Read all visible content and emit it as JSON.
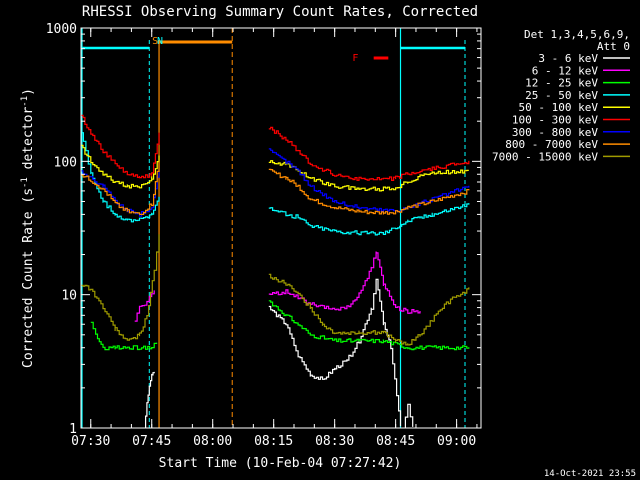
{
  "chart_data": {
    "type": "line",
    "title": "RHESSI Observing Summary Count Rates, Corrected",
    "xlabel": "Start Time (10-Feb-04 07:27:42)",
    "ylabel_main": "Corrected Count Rate (s",
    "ylabel_sup1": "-1",
    "ylabel_mid": " detector",
    "ylabel_sup2": "-1",
    "ylabel_end": ")",
    "ylog": true,
    "ylim": [
      1,
      1000
    ],
    "xlim": [
      7.46,
      9.1
    ],
    "x_ticks": [
      {
        "value": 7.5,
        "label": "07:30"
      },
      {
        "value": 7.75,
        "label": "07:45"
      },
      {
        "value": 8.0,
        "label": "08:00"
      },
      {
        "value": 8.25,
        "label": "08:15"
      },
      {
        "value": 8.5,
        "label": "08:30"
      },
      {
        "value": 8.75,
        "label": "08:45"
      },
      {
        "value": 9.0,
        "label": "09:00"
      }
    ],
    "y_ticks": [
      {
        "value": 1,
        "label": "1"
      },
      {
        "value": 10,
        "label": "10"
      },
      {
        "value": 100,
        "label": "100"
      },
      {
        "value": 1000,
        "label": "1000"
      }
    ],
    "legend_header": [
      "Det 1,3,4,5,6,9,",
      "Att 0"
    ],
    "legend_position": "right",
    "footer_date": "14-Oct-2021 23:55",
    "flags": [
      {
        "label": "S",
        "color": "#ff8c00",
        "x": 7.76
      },
      {
        "label": "N",
        "color": "#00ffff",
        "x": 7.78
      },
      {
        "label": "F",
        "color": "#ff0000",
        "x": 8.63
      }
    ],
    "series": [
      {
        "name": "3 - 6 keV",
        "color": "#ffffff",
        "segments": [
          [
            [
              7.72,
              1
            ],
            [
              7.73,
              1.5
            ],
            [
              7.74,
              2
            ],
            [
              7.75,
              2.5
            ],
            [
              7.76,
              2.6
            ]
          ],
          [
            [
              8.23,
              8
            ],
            [
              8.3,
              6
            ],
            [
              8.35,
              3.5
            ],
            [
              8.4,
              2.5
            ],
            [
              8.45,
              2.3
            ],
            [
              8.5,
              2.8
            ],
            [
              8.55,
              3.2
            ],
            [
              8.6,
              4.5
            ],
            [
              8.65,
              8
            ],
            [
              8.67,
              13
            ],
            [
              8.7,
              6
            ],
            [
              8.73,
              4
            ],
            [
              8.77,
              1
            ]
          ],
          [
            [
              8.78,
              1
            ],
            [
              8.8,
              1.5
            ],
            [
              8.82,
              1
            ]
          ]
        ]
      },
      {
        "name": "6 - 12 keV",
        "color": "#ff00ff",
        "segments": [
          [
            [
              7.68,
              6.5
            ],
            [
              7.7,
              8
            ],
            [
              7.72,
              8.5
            ],
            [
              7.74,
              9.5
            ],
            [
              7.76,
              11
            ]
          ],
          [
            [
              8.23,
              10
            ],
            [
              8.3,
              10.5
            ],
            [
              8.35,
              9.5
            ],
            [
              8.4,
              8.5
            ],
            [
              8.45,
              8
            ],
            [
              8.5,
              7.8
            ],
            [
              8.55,
              8
            ],
            [
              8.6,
              10
            ],
            [
              8.65,
              16
            ],
            [
              8.67,
              21
            ],
            [
              8.7,
              12
            ],
            [
              8.75,
              8
            ],
            [
              8.8,
              7.5
            ],
            [
              8.85,
              7.5
            ]
          ]
        ]
      },
      {
        "name": "12 - 25 keV",
        "color": "#00ff00",
        "segments": [
          [
            [
              7.5,
              6
            ],
            [
              7.52,
              5
            ],
            [
              7.55,
              4
            ],
            [
              7.6,
              4
            ],
            [
              7.65,
              4
            ],
            [
              7.7,
              4
            ],
            [
              7.75,
              4
            ],
            [
              7.77,
              4.5
            ]
          ],
          [
            [
              8.23,
              9
            ],
            [
              8.3,
              7
            ],
            [
              8.35,
              6
            ],
            [
              8.4,
              5
            ],
            [
              8.5,
              4.5
            ],
            [
              8.6,
              4.5
            ],
            [
              8.7,
              4.5
            ],
            [
              8.8,
              4
            ],
            [
              8.9,
              4
            ],
            [
              9.05,
              4
            ]
          ]
        ]
      },
      {
        "name": "25 - 50 keV",
        "color": "#00ffff",
        "segments": [
          [
            [
              7.46,
              160
            ],
            [
              7.48,
              120
            ],
            [
              7.5,
              80
            ],
            [
              7.55,
              50
            ],
            [
              7.6,
              40
            ],
            [
              7.65,
              36
            ],
            [
              7.7,
              37
            ],
            [
              7.75,
              40
            ],
            [
              7.78,
              55
            ]
          ],
          [
            [
              8.23,
              45
            ],
            [
              8.3,
              40
            ],
            [
              8.35,
              38
            ],
            [
              8.4,
              33
            ],
            [
              8.5,
              30
            ],
            [
              8.6,
              29
            ],
            [
              8.7,
              29
            ],
            [
              8.75,
              32
            ],
            [
              8.8,
              36
            ],
            [
              8.85,
              38
            ],
            [
              8.9,
              40
            ],
            [
              9.05,
              48
            ]
          ]
        ]
      },
      {
        "name": "50 - 100 keV",
        "color": "#ffff00",
        "segments": [
          [
            [
              7.46,
              130
            ],
            [
              7.5,
              100
            ],
            [
              7.55,
              80
            ],
            [
              7.6,
              70
            ],
            [
              7.65,
              65
            ],
            [
              7.7,
              65
            ],
            [
              7.75,
              75
            ],
            [
              7.78,
              110
            ]
          ],
          [
            [
              8.23,
              100
            ],
            [
              8.3,
              95
            ],
            [
              8.35,
              85
            ],
            [
              8.4,
              75
            ],
            [
              8.5,
              65
            ],
            [
              8.6,
              62
            ],
            [
              8.7,
              62
            ],
            [
              8.75,
              63
            ],
            [
              8.8,
              70
            ],
            [
              8.85,
              78
            ],
            [
              8.9,
              82
            ],
            [
              9.05,
              85
            ]
          ]
        ]
      },
      {
        "name": "100 - 300 keV",
        "color": "#ff0000",
        "segments": [
          [
            [
              7.46,
              220
            ],
            [
              7.5,
              160
            ],
            [
              7.55,
              120
            ],
            [
              7.6,
              95
            ],
            [
              7.65,
              80
            ],
            [
              7.7,
              75
            ],
            [
              7.75,
              80
            ],
            [
              7.78,
              160
            ]
          ],
          [
            [
              8.23,
              180
            ],
            [
              8.3,
              145
            ],
            [
              8.35,
              120
            ],
            [
              8.4,
              95
            ],
            [
              8.5,
              80
            ],
            [
              8.6,
              74
            ],
            [
              8.7,
              73
            ],
            [
              8.75,
              75
            ],
            [
              8.8,
              80
            ],
            [
              8.9,
              88
            ],
            [
              9.05,
              100
            ]
          ]
        ]
      },
      {
        "name": "300 - 800 keV",
        "color": "#0000ff",
        "segments": [
          [
            [
              7.46,
              85
            ],
            [
              7.5,
              75
            ],
            [
              7.55,
              65
            ],
            [
              7.6,
              50
            ],
            [
              7.65,
              43
            ],
            [
              7.7,
              40
            ],
            [
              7.75,
              45
            ],
            [
              7.78,
              90
            ]
          ],
          [
            [
              8.23,
              120
            ],
            [
              8.3,
              100
            ],
            [
              8.35,
              85
            ],
            [
              8.4,
              65
            ],
            [
              8.5,
              50
            ],
            [
              8.6,
              45
            ],
            [
              8.7,
              43
            ],
            [
              8.75,
              43
            ],
            [
              8.8,
              45
            ],
            [
              8.9,
              52
            ],
            [
              9.05,
              65
            ]
          ]
        ]
      },
      {
        "name": "800 - 7000 keV",
        "color": "#ff8c00",
        "segments": [
          [
            [
              7.46,
              80
            ],
            [
              7.5,
              72
            ],
            [
              7.55,
              62
            ],
            [
              7.6,
              48
            ],
            [
              7.65,
              42
            ],
            [
              7.7,
              40
            ],
            [
              7.75,
              48
            ],
            [
              7.78,
              100
            ]
          ],
          [
            [
              8.23,
              85
            ],
            [
              8.3,
              75
            ],
            [
              8.35,
              65
            ],
            [
              8.4,
              52
            ],
            [
              8.5,
              45
            ],
            [
              8.6,
              42
            ],
            [
              8.7,
              41
            ],
            [
              8.75,
              42
            ],
            [
              8.8,
              45
            ],
            [
              8.9,
              50
            ],
            [
              9.05,
              60
            ]
          ]
        ]
      },
      {
        "name": "7000 - 15000 keV",
        "color": "#a09b00",
        "segments": [
          [
            [
              7.46,
              12
            ],
            [
              7.5,
              11
            ],
            [
              7.55,
              8
            ],
            [
              7.6,
              5.5
            ],
            [
              7.65,
              4.5
            ],
            [
              7.7,
              5
            ],
            [
              7.73,
              7
            ],
            [
              7.76,
              15
            ],
            [
              7.78,
              28
            ]
          ],
          [
            [
              8.23,
              14
            ],
            [
              8.3,
              12
            ],
            [
              8.35,
              10
            ],
            [
              8.4,
              8
            ],
            [
              8.45,
              6
            ],
            [
              8.5,
              5.2
            ],
            [
              8.6,
              5.2
            ],
            [
              8.7,
              5.2
            ],
            [
              8.75,
              4.5
            ],
            [
              8.8,
              4.2
            ],
            [
              8.85,
              5
            ],
            [
              8.9,
              6.5
            ],
            [
              8.95,
              8.5
            ],
            [
              9.05,
              11
            ]
          ]
        ]
      }
    ]
  }
}
